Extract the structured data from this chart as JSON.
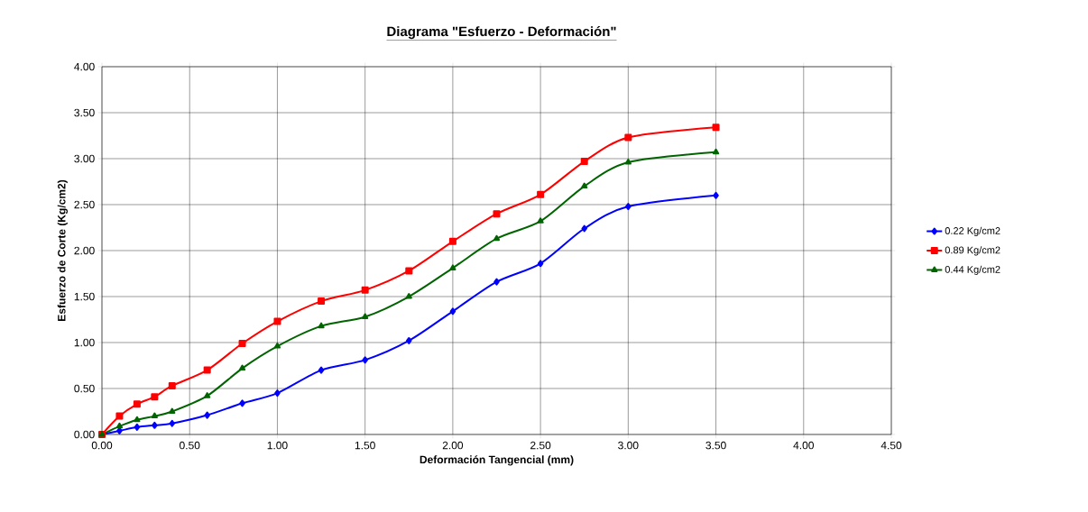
{
  "chart_data": {
    "type": "line",
    "title": "Diagrama \"Esfuerzo - Deformación\"",
    "xlabel": "Deformación Tangencial (mm)",
    "ylabel": "Esfuerzo de Corte (Kg/cm2)",
    "x": [
      0,
      0.1,
      0.2,
      0.3,
      0.4,
      0.6,
      0.8,
      1.0,
      1.25,
      1.5,
      1.75,
      2.0,
      2.25,
      2.5,
      2.75,
      3.0,
      3.5
    ],
    "series": [
      {
        "name": "0.22 Kg/cm2",
        "color": "#0000ff",
        "marker": "diamond",
        "values": [
          0,
          0.04,
          0.08,
          0.1,
          0.12,
          0.21,
          0.34,
          0.45,
          0.7,
          0.81,
          1.02,
          1.34,
          1.66,
          1.86,
          2.24,
          2.48,
          2.6
        ]
      },
      {
        "name": "0.89 Kg/cm2",
        "color": "#ff0000",
        "marker": "square",
        "values": [
          0,
          0.2,
          0.33,
          0.41,
          0.53,
          0.7,
          0.99,
          1.23,
          1.45,
          1.57,
          1.78,
          2.1,
          2.4,
          2.61,
          2.97,
          3.23,
          3.34
        ]
      },
      {
        "name": "0.44 Kg/cm2",
        "color": "#006400",
        "marker": "triangle",
        "values": [
          0,
          0.09,
          0.16,
          0.2,
          0.25,
          0.42,
          0.72,
          0.96,
          1.18,
          1.28,
          1.5,
          1.81,
          2.13,
          2.32,
          2.7,
          2.96,
          3.07
        ]
      }
    ],
    "xlim": [
      0,
      4.5
    ],
    "ylim": [
      0,
      4
    ],
    "xticks": [
      {
        "value": 0,
        "label": "0.00"
      },
      {
        "value": 0.5,
        "label": "0.50"
      },
      {
        "value": 1,
        "label": "1.00"
      },
      {
        "value": 1.5,
        "label": "1.50"
      },
      {
        "value": 2,
        "label": "2.00"
      },
      {
        "value": 2.5,
        "label": "2.50"
      },
      {
        "value": 3,
        "label": "3.00"
      },
      {
        "value": 3.5,
        "label": "3.50"
      },
      {
        "value": 4,
        "label": "4.00"
      },
      {
        "value": 4.5,
        "label": "4.50"
      }
    ],
    "yticks": [
      {
        "value": 0,
        "label": "0.00"
      },
      {
        "value": 0.5,
        "label": "0.50"
      },
      {
        "value": 1,
        "label": "1.00"
      },
      {
        "value": 1.5,
        "label": "1.50"
      },
      {
        "value": 2,
        "label": "2.00"
      },
      {
        "value": 2.5,
        "label": "2.50"
      },
      {
        "value": 3,
        "label": "3.00"
      },
      {
        "value": 3.5,
        "label": "3.50"
      },
      {
        "value": 4,
        "label": "4.00"
      }
    ],
    "grid": true,
    "legend": "right",
    "line_style": "solid"
  }
}
